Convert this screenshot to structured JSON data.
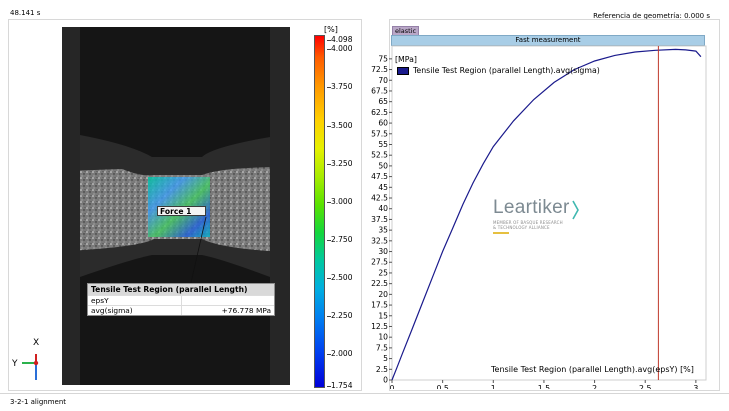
{
  "header": {
    "time": "48.141 s",
    "geometry_reference": "Referencia de geometría: 0.000 s"
  },
  "status": "3-2-1 alignment",
  "colorbar": {
    "unit": "[%]",
    "labels": [
      "4.098",
      "4.000",
      "3.750",
      "3.500",
      "3.250",
      "3.000",
      "2.750",
      "2.500",
      "2.250",
      "2.000",
      "1.754"
    ]
  },
  "tooltip": {
    "title": "Tensile Test Region (parallel Length)",
    "rows": [
      {
        "key": "epsY",
        "value": ""
      },
      {
        "key": "avg(sigma)",
        "value": "+76.778 MPa"
      }
    ]
  },
  "force_label": "Force 1",
  "axis_indicator": {
    "x": "X",
    "y": "Y"
  },
  "chart_tags": {
    "elastic": "elastic",
    "fast": "Fast measurement"
  },
  "watermark": {
    "word": "Leartiker",
    "sub1": "MEMBER OF BASQUE RESEARCH",
    "sub2": "& TECHNOLOGY ALLIANCE"
  },
  "chart_data": {
    "type": "line",
    "y_unit": "[MPa]",
    "xlabel": "Tensile Test Region (parallel Length).avg(epsY) [%]",
    "series": [
      {
        "name": "Tensile Test Region (parallel Length).avg(sigma)",
        "color": "#1a1a8c",
        "x": [
          0,
          0.05,
          0.1,
          0.2,
          0.3,
          0.4,
          0.5,
          0.6,
          0.7,
          0.8,
          0.9,
          1.0,
          1.1,
          1.2,
          1.4,
          1.6,
          1.8,
          2.0,
          2.2,
          2.4,
          2.6,
          2.8,
          2.9,
          3.0,
          3.05
        ],
        "y": [
          0,
          3,
          6,
          12,
          18,
          24,
          30,
          35.5,
          41,
          46,
          50.5,
          54.5,
          57.5,
          60.5,
          65.5,
          69.5,
          72.5,
          74.5,
          75.8,
          76.6,
          77,
          77.2,
          77.1,
          76.8,
          75.5
        ]
      }
    ],
    "x_ticks": [
      "0",
      "0.5",
      "1",
      "1.5",
      "2",
      "2.5",
      "3"
    ],
    "y_ticks": [
      "0",
      "2.5",
      "5",
      "7.5",
      "10",
      "12.5",
      "15",
      "17.5",
      "20",
      "22.5",
      "25",
      "27.5",
      "30",
      "32.5",
      "35",
      "37.5",
      "40",
      "42.5",
      "45",
      "47.5",
      "50",
      "52.5",
      "55",
      "57.5",
      "60",
      "62.5",
      "65",
      "67.5",
      "70",
      "72.5",
      "75"
    ],
    "xlim": [
      0,
      3.1
    ],
    "ylim": [
      0,
      78
    ],
    "cursor_x": 2.63,
    "cursor_color": "#c0392b"
  }
}
